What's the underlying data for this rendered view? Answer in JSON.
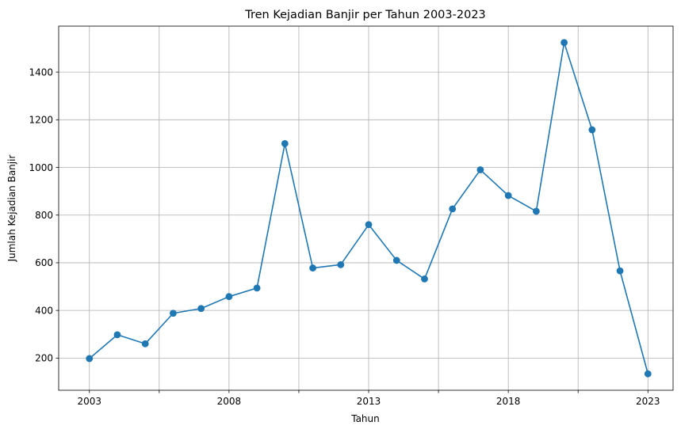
{
  "chart_data": {
    "type": "line",
    "title": "Tren Kejadian Banjir per Tahun 2003-2023",
    "xlabel": "Tahun",
    "ylabel": "Jumlah Kejadian Banjir",
    "x": [
      2003,
      2004,
      2005,
      2006,
      2007,
      2008,
      2009,
      2010,
      2011,
      2012,
      2013,
      2014,
      2015,
      2016,
      2017,
      2018,
      2019,
      2020,
      2021,
      2022,
      2023
    ],
    "series": [
      {
        "values": [
          198,
          298,
          260,
          388,
          408,
          458,
          494,
          1100,
          578,
          592,
          760,
          610,
          532,
          826,
          990,
          882,
          816,
          1524,
          1158,
          566,
          134
        ],
        "color": "#1f77b4"
      }
    ],
    "xlim": [
      2001.9,
      2023.9
    ],
    "ylim": [
      65,
      1593
    ],
    "xticks": [
      2003,
      2005.5,
      2008,
      2010.5,
      2013,
      2015.5,
      2018,
      2020.5,
      2023
    ],
    "xtick_labels": [
      "2003",
      "",
      "2008",
      "",
      "2013",
      "",
      "2018",
      "",
      "2023"
    ],
    "yticks": [
      200,
      400,
      600,
      800,
      1000,
      1200,
      1400
    ],
    "ytick_labels": [
      "200",
      "400",
      "600",
      "800",
      "1000",
      "1200",
      "1400"
    ],
    "grid": true,
    "legend": "none",
    "marker": "circle"
  }
}
